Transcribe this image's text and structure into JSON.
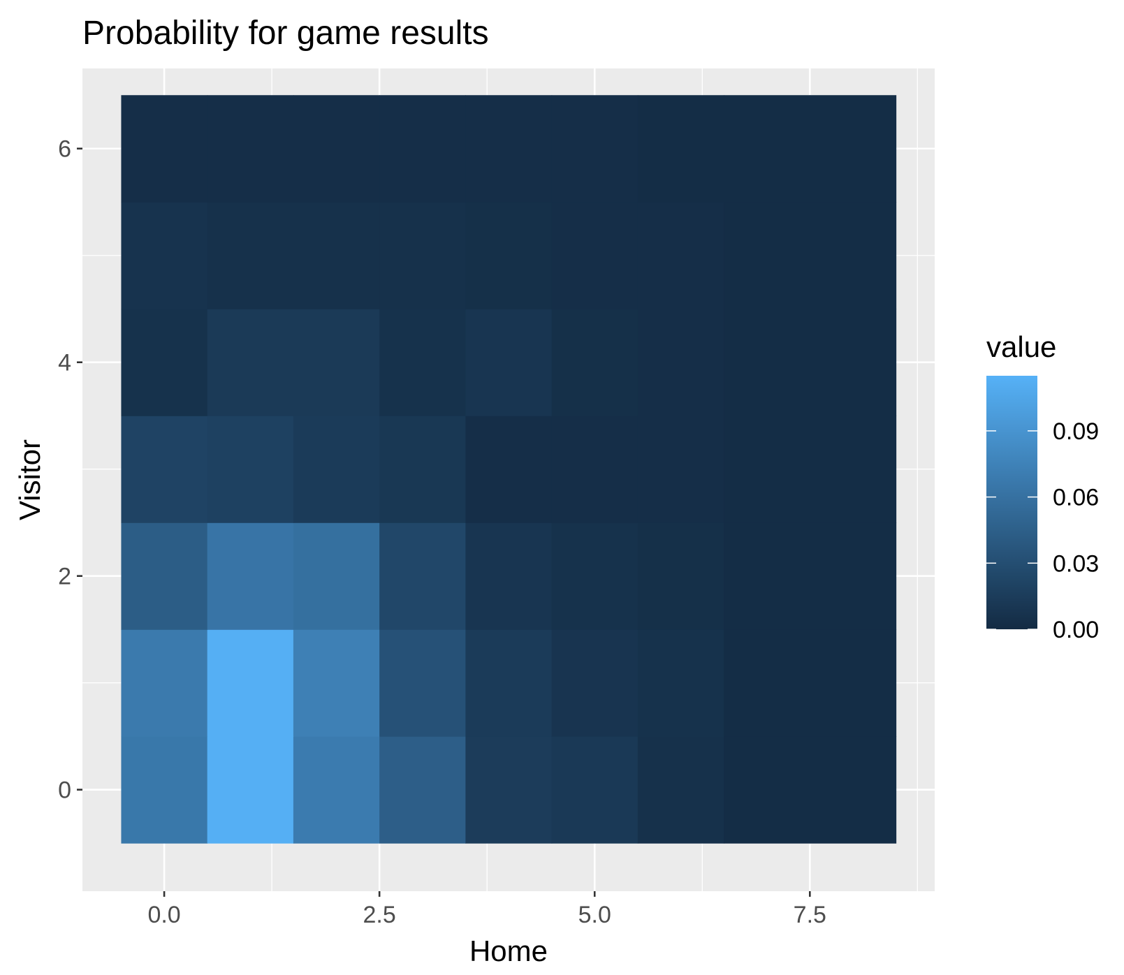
{
  "chart_data": {
    "type": "heatmap",
    "title": "Probability for game results",
    "xlabel": "Home",
    "ylabel": "Visitor",
    "x_categories": [
      0,
      1,
      2,
      3,
      4,
      5,
      6,
      7,
      8
    ],
    "y_categories": [
      0,
      1,
      2,
      3,
      4,
      5,
      6
    ],
    "x_ticks": [
      "0.0",
      "2.5",
      "5.0",
      "7.5"
    ],
    "x_tick_values": [
      0,
      2.5,
      5,
      7.5
    ],
    "y_ticks": [
      "0",
      "2",
      "4",
      "6"
    ],
    "y_tick_values": [
      0,
      2,
      4,
      6
    ],
    "xlim": [
      -0.95,
      8.95
    ],
    "ylim": [
      -0.95,
      6.75
    ],
    "grid": true,
    "legend": {
      "title": "value",
      "position": "right",
      "ticks": [
        "0.00",
        "0.03",
        "0.06",
        "0.09"
      ],
      "tick_values": [
        0,
        0.03,
        0.06,
        0.09
      ],
      "range": [
        0,
        0.115
      ],
      "color_low": "#132B43",
      "color_high": "#56B1F7"
    },
    "values": [
      [
        0.066,
        0.113,
        0.069,
        0.044,
        0.015,
        0.012,
        0.005,
        0.002,
        0.002
      ],
      [
        0.068,
        0.113,
        0.073,
        0.033,
        0.014,
        0.008,
        0.006,
        0.002,
        0.002
      ],
      [
        0.043,
        0.063,
        0.059,
        0.024,
        0.009,
        0.006,
        0.004,
        0.002,
        0.002
      ],
      [
        0.021,
        0.019,
        0.014,
        0.011,
        0.003,
        0.003,
        0.003,
        0.002,
        0.002
      ],
      [
        0.006,
        0.013,
        0.013,
        0.006,
        0.009,
        0.004,
        0.003,
        0.002,
        0.002
      ],
      [
        0.007,
        0.005,
        0.005,
        0.005,
        0.004,
        0.003,
        0.003,
        0.002,
        0.002
      ],
      [
        0.003,
        0.003,
        0.003,
        0.003,
        0.003,
        0.003,
        0.002,
        0.002,
        0.002
      ]
    ]
  },
  "colors": {
    "panel_background": "#EBEBEB",
    "grid_line": "#FFFFFF",
    "tick_text": "#4D4D4D",
    "label_text": "#000000"
  }
}
